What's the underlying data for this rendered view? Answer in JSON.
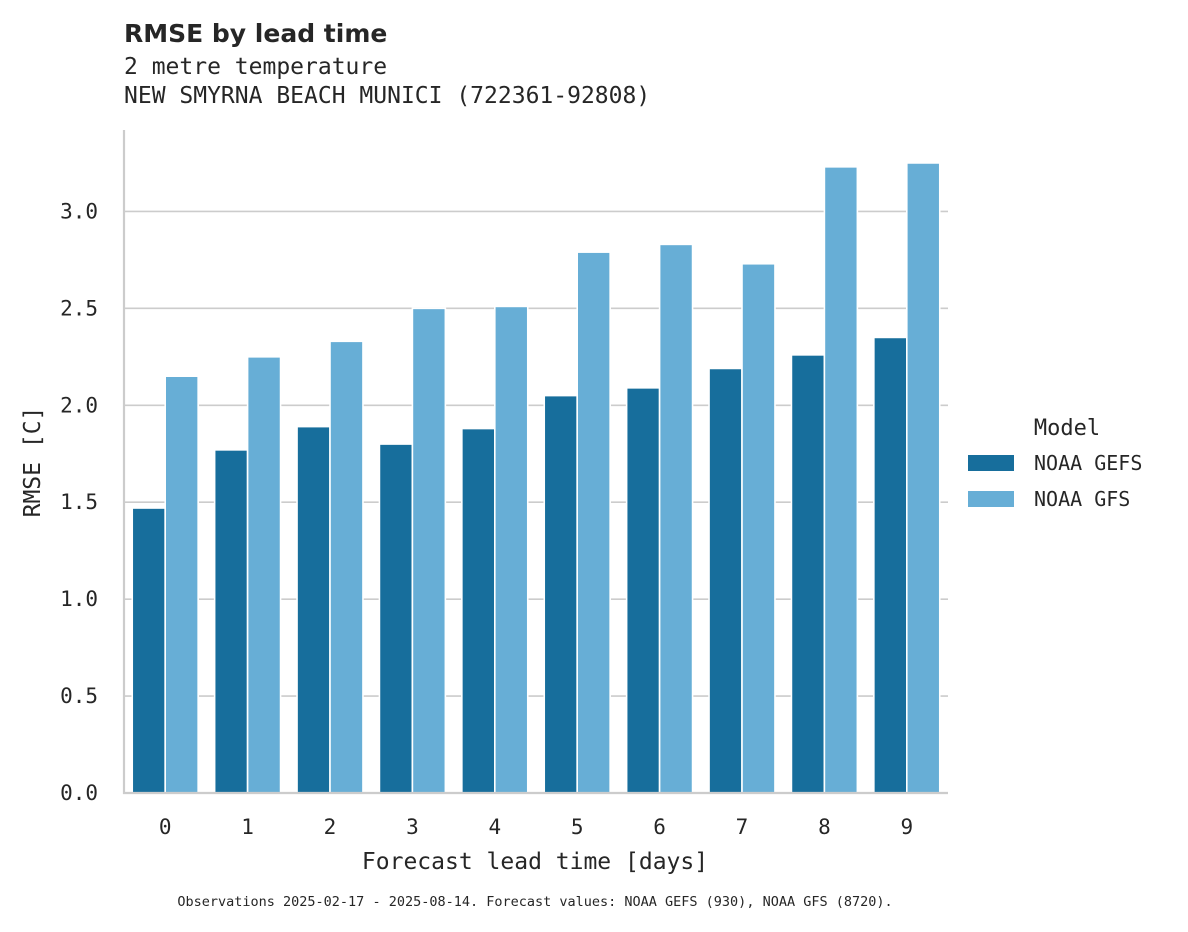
{
  "chart_data": {
    "type": "bar",
    "title": "RMSE by lead time",
    "subtitle_lines": [
      "2 metre temperature",
      "NEW SMYRNA BEACH MUNICI (722361-92808)"
    ],
    "xlabel": "Forecast lead time [days]",
    "ylabel": "RMSE [C]",
    "categories": [
      "0",
      "1",
      "2",
      "3",
      "4",
      "5",
      "6",
      "7",
      "8",
      "9"
    ],
    "ylim": [
      0,
      3.42
    ],
    "yticks": [
      0.0,
      0.5,
      1.0,
      1.5,
      2.0,
      2.5,
      3.0
    ],
    "ytick_labels": [
      "0.0",
      "0.5",
      "1.0",
      "1.5",
      "2.0",
      "2.5",
      "3.0"
    ],
    "grid": "horizontal",
    "legend": {
      "title": "Model",
      "placement": "right"
    },
    "series": [
      {
        "name": "NOAA GEFS",
        "color": "#176e9c",
        "values": [
          1.47,
          1.77,
          1.89,
          1.8,
          1.88,
          2.05,
          2.09,
          2.19,
          2.26,
          2.35
        ]
      },
      {
        "name": "NOAA GFS",
        "color": "#67aed6",
        "values": [
          2.15,
          2.25,
          2.33,
          2.5,
          2.51,
          2.79,
          2.83,
          2.73,
          3.23,
          3.25
        ]
      }
    ],
    "footnote": "Observations 2025-02-17 - 2025-08-14. Forecast values: NOAA GEFS (930), NOAA GFS (8720)."
  }
}
